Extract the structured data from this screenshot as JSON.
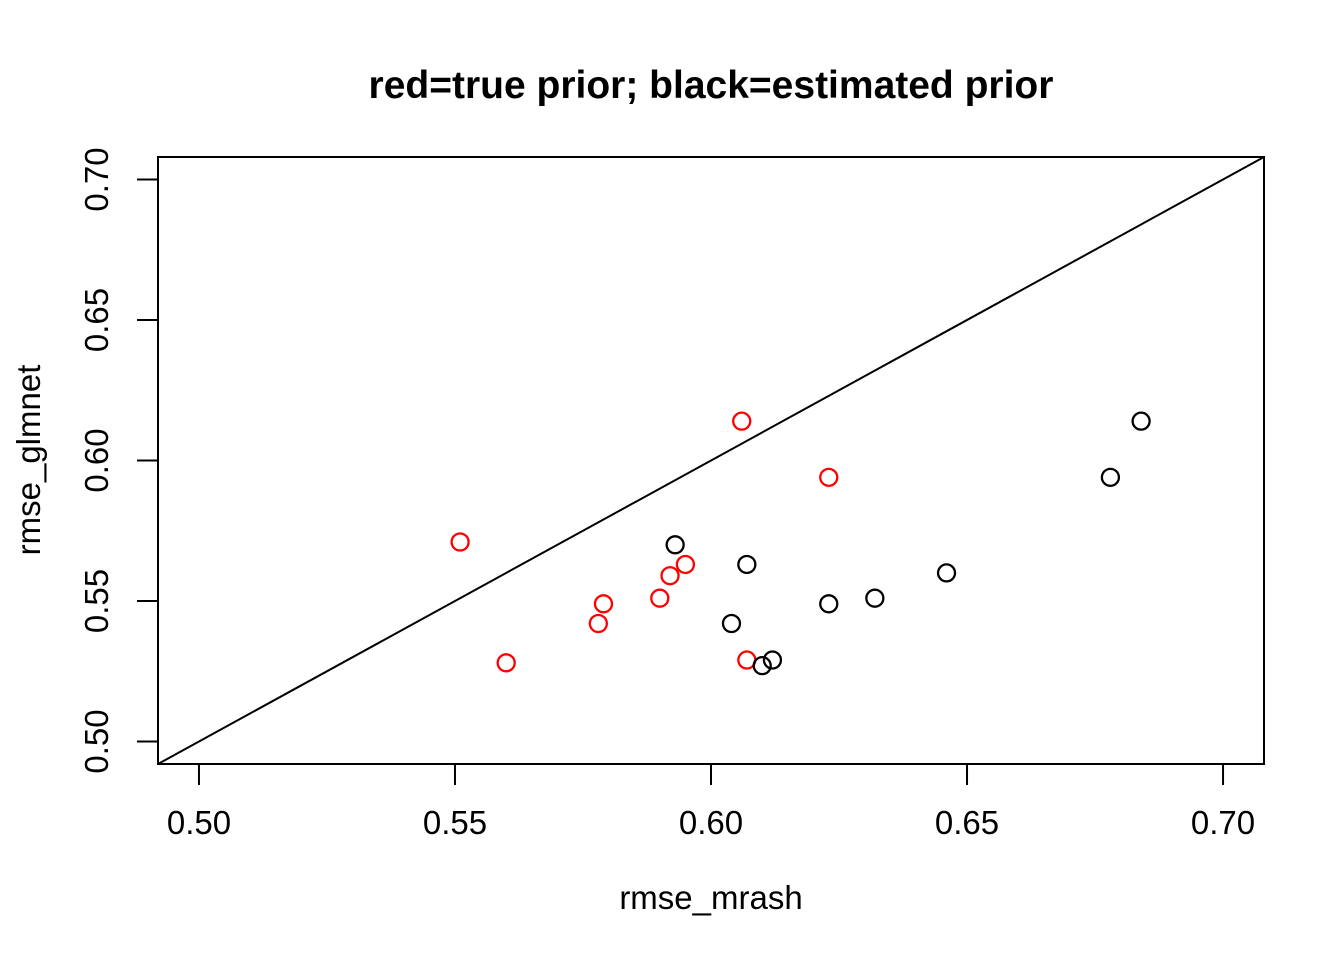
{
  "figure": {
    "background": "#FFFFFF",
    "foreground": "#000000"
  },
  "chart_data": {
    "type": "scatter",
    "title": "red=true prior; black=estimated prior",
    "xlabel": "rmse_mrash",
    "ylabel": "rmse_glmnet",
    "xlim": [
      0.492,
      0.708
    ],
    "ylim": [
      0.492,
      0.708
    ],
    "xticks": {
      "values": [
        0.5,
        0.55,
        0.6,
        0.65,
        0.7
      ],
      "labels": [
        "0.50",
        "0.55",
        "0.60",
        "0.65",
        "0.70"
      ]
    },
    "yticks": {
      "values": [
        0.5,
        0.55,
        0.6,
        0.65,
        0.7
      ],
      "labels": [
        "0.50",
        "0.55",
        "0.60",
        "0.65",
        "0.70"
      ]
    },
    "grid": false,
    "legend_position": "none",
    "marker": "open-circle",
    "reference_line": {
      "type": "identity",
      "intercept": 0,
      "slope": 1,
      "color": "#000000"
    },
    "series": [
      {
        "name": "true prior",
        "key": "true-prior",
        "color": "#FF0000",
        "points": [
          [
            0.551,
            0.571
          ],
          [
            0.56,
            0.528
          ],
          [
            0.578,
            0.542
          ],
          [
            0.579,
            0.549
          ],
          [
            0.59,
            0.551
          ],
          [
            0.592,
            0.559
          ],
          [
            0.595,
            0.563
          ],
          [
            0.606,
            0.614
          ],
          [
            0.607,
            0.529
          ],
          [
            0.623,
            0.594
          ]
        ]
      },
      {
        "name": "estimated prior",
        "key": "estimated-prior",
        "color": "#000000",
        "points": [
          [
            0.593,
            0.57
          ],
          [
            0.604,
            0.542
          ],
          [
            0.607,
            0.563
          ],
          [
            0.61,
            0.527
          ],
          [
            0.612,
            0.529
          ],
          [
            0.623,
            0.549
          ],
          [
            0.632,
            0.551
          ],
          [
            0.646,
            0.56
          ],
          [
            0.678,
            0.594
          ],
          [
            0.684,
            0.614
          ]
        ]
      }
    ]
  }
}
